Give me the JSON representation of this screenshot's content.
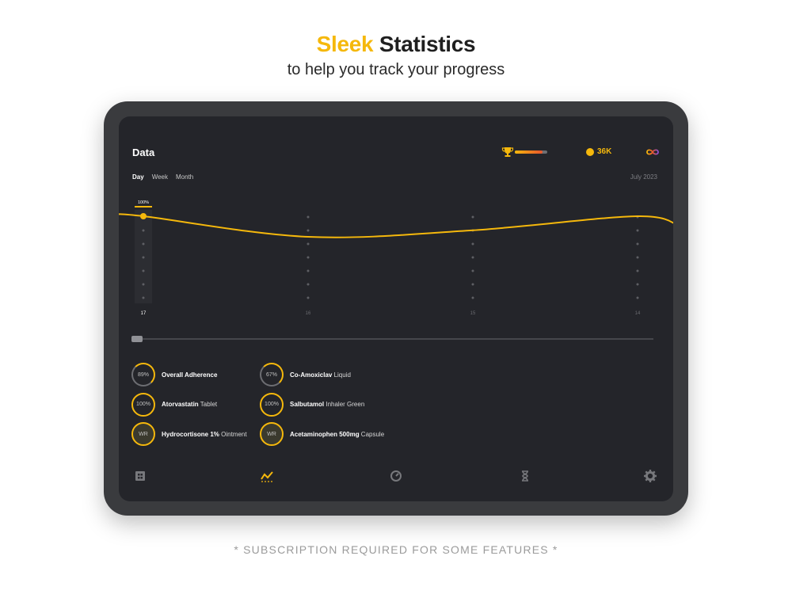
{
  "promo": {
    "headline_accent": "Sleek",
    "headline_rest": "Statistics",
    "subheadline": "to help you track your progress",
    "footnote": "* SUBSCRIPTION REQUIRED FOR SOME FEATURES *"
  },
  "header": {
    "title": "Data",
    "trophy_progress": 0.85,
    "coins": "36K",
    "icons": [
      "trophy-icon",
      "coin-icon",
      "infinity-icon"
    ]
  },
  "period_tabs": [
    {
      "label": "Day",
      "active": true
    },
    {
      "label": "Week",
      "active": false
    },
    {
      "label": "Month",
      "active": false
    }
  ],
  "month_label": "July 2023",
  "colors": {
    "accent": "#f5b80c",
    "background": "#24252a",
    "device": "#3a3b3e"
  },
  "chart_data": {
    "type": "line",
    "x": [
      "17",
      "16",
      "15",
      "14"
    ],
    "values": [
      100,
      78,
      85,
      100
    ],
    "highlight_label": "100%",
    "ylim": [
      0,
      100
    ],
    "grid": false
  },
  "stats": [
    {
      "ring": "89%",
      "name": "Overall Adherence",
      "form": "",
      "fill": 89
    },
    {
      "ring": "67%",
      "name": "Co-Amoxiclav",
      "form": "Liquid",
      "fill": 67
    },
    {
      "ring": "100%",
      "name": "Atorvastatin",
      "form": "Tablet",
      "fill": 100
    },
    {
      "ring": "100%",
      "name": "Salbutamol",
      "form": "Inhaler Green",
      "fill": 100
    },
    {
      "ring": "WR",
      "name": "Hydrocortisone 1%",
      "form": "Ointment",
      "fill": 100
    },
    {
      "ring": "WR",
      "name": "Acetaminophen 500mg",
      "form": "Capsule",
      "fill": 100
    }
  ],
  "nav": [
    "home-icon",
    "statistics-icon",
    "timer-icon",
    "hourglass-icon",
    "gear-icon"
  ]
}
